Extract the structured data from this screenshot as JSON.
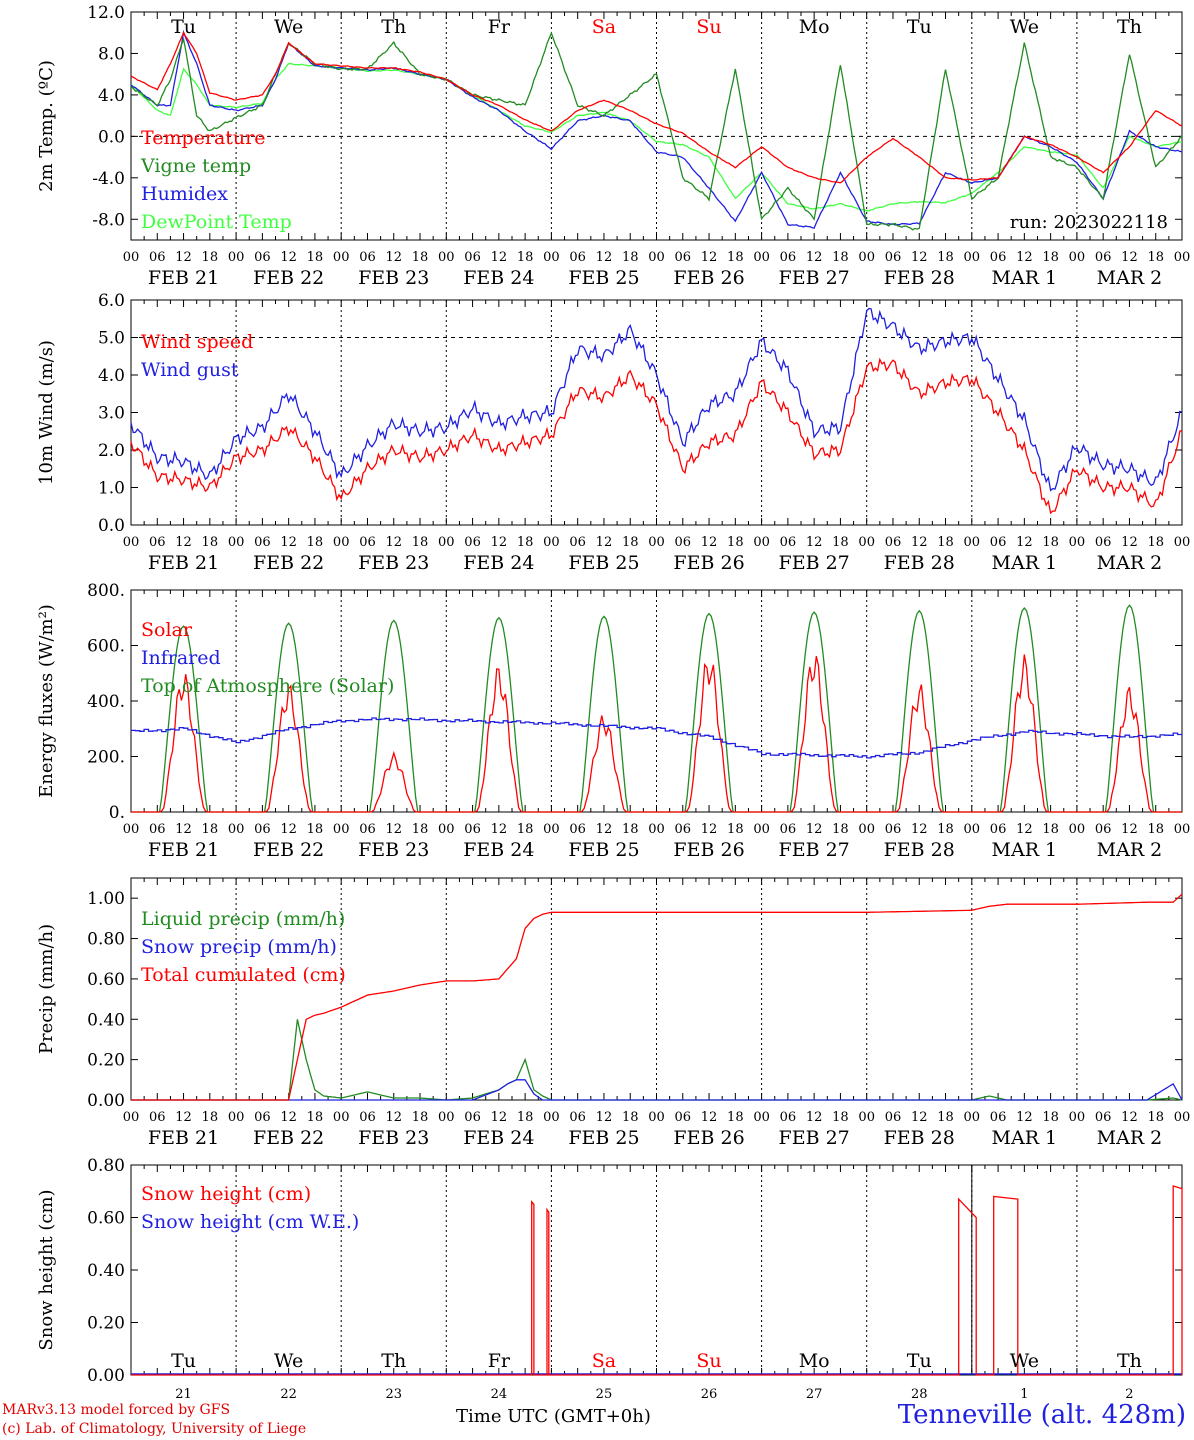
{
  "chart_data": [
    {
      "type": "line",
      "ylabel": "2m Temp. (ºC)",
      "ylim": [
        -10,
        12
      ],
      "yticks": [
        "12.0",
        "8.0",
        "4.0",
        "0.0",
        "-4.0",
        "-8.0"
      ],
      "ytick_values": [
        12,
        8,
        4,
        0,
        -4,
        -8
      ],
      "reference_line": 0,
      "day_names": [
        "Tu",
        "We",
        "Th",
        "Fr",
        "Sa",
        "Su",
        "Mo",
        "Tu",
        "We",
        "Th"
      ],
      "weekend_days": [
        "Sa",
        "Su"
      ],
      "x_hour_labels": [
        "00",
        "06",
        "12",
        "18"
      ],
      "date_labels": [
        "FEB 21",
        "FEB 22",
        "FEB 23",
        "FEB 24",
        "FEB 25",
        "FEB 26",
        "FEB 27",
        "FEB 28",
        "MAR  1",
        "MAR  2"
      ],
      "run_label": "run: 2023022118",
      "x_hours": [
        0,
        6,
        9,
        12,
        15,
        18,
        24,
        30,
        33,
        36,
        42,
        48,
        54,
        60,
        66,
        72,
        78,
        84,
        90,
        96,
        102,
        108,
        114,
        120,
        126,
        132,
        138,
        144,
        150,
        156,
        162,
        168,
        174,
        180,
        186,
        192,
        198,
        204,
        210,
        216,
        222,
        228,
        234,
        240
      ],
      "series": [
        {
          "name": "Temperature",
          "color": "#ff0000",
          "values": [
            5.8,
            4.5,
            7,
            10,
            8,
            4.2,
            3.5,
            4,
            6,
            9,
            7,
            6.8,
            6.6,
            6.6,
            6.2,
            5.5,
            4,
            3,
            1.6,
            0.5,
            2.5,
            3.5,
            2.5,
            1.2,
            0.3,
            -1.5,
            -3,
            -1,
            -3,
            -4,
            -4.5,
            -2,
            -0.2,
            -2,
            -4,
            -4.2,
            -4,
            0,
            -0.8,
            -2,
            -3.5,
            -1,
            2.5,
            1
          ]
        },
        {
          "name": "Vigne temp",
          "color": "#228b22",
          "values": [
            4.8,
            3,
            5.5,
            9.5,
            2,
            0.5,
            1.8,
            3,
            6,
            9,
            7,
            6.5,
            6.5,
            9,
            6,
            5.5,
            4,
            3.5,
            3,
            10,
            3,
            2,
            4,
            6,
            -4,
            -6,
            6.5,
            -8,
            -5,
            -8,
            7,
            -8.5,
            -8.5,
            -9,
            6.5,
            -6,
            -4,
            9,
            -2,
            -3,
            -6,
            8,
            -3,
            0
          ]
        },
        {
          "name": "Humidex",
          "color": "#2020e0",
          "values": [
            5,
            3,
            3,
            10,
            7,
            3,
            2.5,
            3,
            5.5,
            9,
            6.8,
            6.6,
            6.4,
            6.6,
            6,
            5.5,
            3.8,
            2.5,
            0.5,
            -1.2,
            1.5,
            2,
            1.5,
            -1.5,
            -2,
            -5,
            -8.2,
            -3.5,
            -8.5,
            -8.8,
            -3.5,
            -8.2,
            -8.5,
            -8.4,
            -3.5,
            -4.5,
            -4,
            0,
            -1,
            -2.5,
            -6,
            0.5,
            -1,
            -1.5
          ]
        },
        {
          "name": "DewPoint Temp",
          "color": "#40ff40",
          "values": [
            5,
            2.5,
            2,
            6.5,
            5,
            3,
            2.8,
            3.2,
            5.5,
            7,
            6.8,
            6.6,
            6.3,
            6.4,
            6,
            5.5,
            4,
            2.5,
            1,
            0.4,
            2,
            2.3,
            1.5,
            -0.5,
            -0.8,
            -2,
            -6,
            -3.5,
            -6.5,
            -7,
            -6.5,
            -7.2,
            -6.5,
            -6.3,
            -6.4,
            -5.5,
            -3.5,
            -1,
            -1.5,
            -1.8,
            -5,
            0,
            -1,
            -0.5
          ]
        }
      ]
    },
    {
      "type": "line",
      "ylabel": "10m Wind (m/s)",
      "ylim": [
        0,
        6
      ],
      "yticks": [
        "6.0",
        "5.0",
        "4.0",
        "3.0",
        "2.0",
        "1.0",
        "0.0"
      ],
      "ytick_values": [
        6,
        5,
        4,
        3,
        2,
        1,
        0
      ],
      "reference_line": 5,
      "date_labels": [
        "FEB 21",
        "FEB 22",
        "FEB 23",
        "FEB 24",
        "FEB 25",
        "FEB 26",
        "FEB 27",
        "FEB 28",
        "MAR  1",
        "MAR  2"
      ],
      "x_hours": [
        0,
        6,
        12,
        18,
        24,
        30,
        36,
        42,
        48,
        54,
        60,
        66,
        72,
        78,
        84,
        90,
        96,
        102,
        108,
        114,
        120,
        126,
        132,
        138,
        144,
        150,
        156,
        162,
        168,
        174,
        180,
        186,
        192,
        198,
        204,
        210,
        216,
        222,
        228,
        234,
        240
      ],
      "series": [
        {
          "name": "Wind speed",
          "color": "#ff0000",
          "values": [
            2.2,
            1.3,
            1.2,
            1,
            1.8,
            2,
            2.6,
            1.8,
            0.7,
            1.5,
            2,
            1.8,
            2,
            2.4,
            2,
            2.2,
            2.4,
            3.6,
            3.4,
            4,
            3.2,
            1.5,
            2.2,
            2.4,
            3.8,
            3,
            1.9,
            2,
            4.2,
            4.3,
            3.5,
            3.8,
            3.9,
            3,
            2,
            0.3,
            1.5,
            1,
            1,
            0.5,
            2.5
          ]
        },
        {
          "name": "Wind gust",
          "color": "#2020e0",
          "values": [
            2.7,
            1.8,
            1.7,
            1.3,
            2.3,
            2.6,
            3.5,
            2.5,
            1.3,
            2.1,
            2.7,
            2.5,
            2.6,
            3.1,
            2.7,
            2.9,
            3,
            4.7,
            4.5,
            5.2,
            4,
            2.2,
            3.2,
            3.5,
            4.9,
            4.1,
            2.5,
            2.6,
            5.7,
            5.3,
            4.7,
            4.9,
            5,
            3.9,
            2.8,
            0.9,
            2.1,
            1.6,
            1.5,
            1.1,
            3
          ]
        }
      ]
    },
    {
      "type": "line",
      "ylabel": "Energy fluxes (W/m²)",
      "ylim": [
        0,
        800
      ],
      "yticks": [
        "800.",
        "600.",
        "400.",
        "200.",
        "0."
      ],
      "ytick_values": [
        800,
        600,
        400,
        200,
        0
      ],
      "date_labels": [
        "FEB 21",
        "FEB 22",
        "FEB 23",
        "FEB 24",
        "FEB 25",
        "FEB 26",
        "FEB 27",
        "FEB 28",
        "MAR  1",
        "MAR  2"
      ],
      "daily_solar_peaks": [
        460,
        420,
        190,
        480,
        320,
        520,
        530,
        420,
        510,
        410
      ],
      "daily_toa_peaks": [
        670,
        680,
        690,
        700,
        705,
        715,
        720,
        725,
        735,
        745
      ],
      "x_hours": [
        0,
        12,
        24,
        36,
        48,
        60,
        72,
        84,
        96,
        108,
        120,
        132,
        144,
        156,
        168,
        180,
        192,
        204,
        216,
        228,
        240
      ],
      "series": [
        {
          "name": "Solar",
          "color": "#ff0000"
        },
        {
          "name": "Infrared",
          "color": "#2020e0",
          "values": [
            290,
            300,
            250,
            300,
            330,
            335,
            330,
            325,
            320,
            310,
            300,
            270,
            210,
            205,
            200,
            215,
            260,
            290,
            280,
            270,
            280
          ]
        },
        {
          "name": "Top of Atmosphere (Solar)",
          "color": "#228b22"
        }
      ]
    },
    {
      "type": "line",
      "ylabel": "Precip (mm/h)",
      "ylim": [
        0,
        1.1
      ],
      "yticks": [
        "1.00",
        "0.80",
        "0.60",
        "0.40",
        "0.20",
        "0.00"
      ],
      "ytick_values": [
        1.0,
        0.8,
        0.6,
        0.4,
        0.2,
        0.0
      ],
      "date_labels": [
        "FEB 21",
        "FEB 22",
        "FEB 23",
        "FEB 24",
        "FEB 25",
        "FEB 26",
        "FEB 27",
        "FEB 28",
        "MAR  1",
        "MAR  2"
      ],
      "x_hours": [
        0,
        36,
        38,
        40,
        42,
        44,
        48,
        54,
        60,
        66,
        72,
        78,
        84,
        86,
        88,
        90,
        92,
        94,
        96,
        120,
        144,
        168,
        192,
        196,
        200,
        216,
        232,
        238,
        240
      ],
      "series": [
        {
          "name": "Liquid precip (mm/h)",
          "color": "#228b22",
          "values": [
            0,
            0,
            0.4,
            0.2,
            0.05,
            0.02,
            0.01,
            0.04,
            0.01,
            0.01,
            0,
            0.01,
            0.05,
            0.08,
            0.1,
            0.2,
            0.05,
            0.02,
            0,
            0,
            0,
            0,
            0,
            0.02,
            0,
            0,
            0,
            0.01,
            0
          ]
        },
        {
          "name": "Snow precip (mm/h)",
          "color": "#2020e0",
          "values": [
            0,
            0,
            0,
            0,
            0,
            0,
            0,
            0,
            0,
            0,
            0,
            0,
            0.05,
            0.08,
            0.1,
            0.1,
            0.03,
            0,
            0,
            0,
            0,
            0,
            0,
            0,
            0,
            0,
            0,
            0.08,
            0
          ]
        },
        {
          "name": "Total cumulated (cm)",
          "color": "#ff0000",
          "values": [
            0,
            0,
            0.2,
            0.4,
            0.42,
            0.43,
            0.46,
            0.52,
            0.54,
            0.57,
            0.59,
            0.59,
            0.6,
            0.65,
            0.7,
            0.85,
            0.9,
            0.92,
            0.93,
            0.93,
            0.93,
            0.93,
            0.94,
            0.96,
            0.97,
            0.97,
            0.98,
            0.98,
            1.02
          ]
        }
      ]
    },
    {
      "type": "line",
      "ylabel": "Snow height (cm)",
      "ylim": [
        0,
        0.8
      ],
      "yticks": [
        "0.80",
        "0.60",
        "0.40",
        "0.20",
        "0.00"
      ],
      "ytick_values": [
        0.8,
        0.6,
        0.4,
        0.2,
        0.0
      ],
      "day_names": [
        "Tu",
        "We",
        "Th",
        "Fr",
        "Sa",
        "Su",
        "Mo",
        "Tu",
        "We",
        "Th"
      ],
      "weekend_days": [
        "Sa",
        "Su"
      ],
      "day_numbers": [
        "21",
        "22",
        "23",
        "24",
        "25",
        "26",
        "27",
        "28",
        "1",
        "2"
      ],
      "series": [
        {
          "name": "Snow height (cm)",
          "color": "#ff0000",
          "pulses": [
            [
              91.5,
              0.66
            ],
            [
              95,
              0.63
            ],
            [
              189,
              0.67
            ],
            [
              197,
              0.68
            ],
            [
              238,
              0.72
            ]
          ]
        },
        {
          "name": "Snow height (cm W.E.)",
          "color": "#2020e0"
        }
      ]
    }
  ],
  "footer": {
    "credit_line1": "MARv3.13 model forced by GFS",
    "credit_line2": "(c) Lab. of Climatology, University of Liege",
    "time_axis_label": "Time UTC (GMT+0h)",
    "station": "Tenneville (alt. 428m)"
  }
}
